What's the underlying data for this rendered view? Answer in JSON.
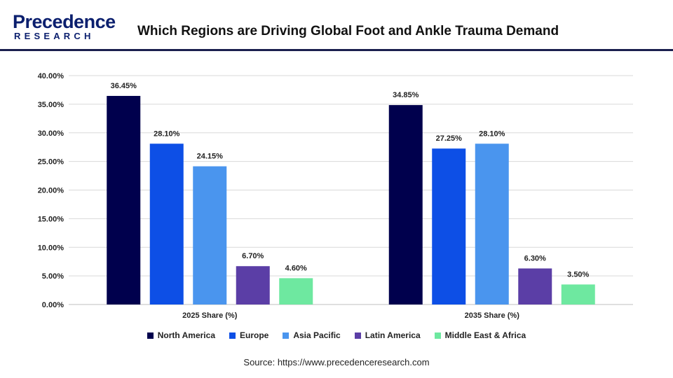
{
  "header": {
    "logo_word": "Precedence",
    "logo_sub": "RESEARCH",
    "title": "Which Regions are Driving Global Foot and Ankle Trauma Demand"
  },
  "colors": {
    "North America": "#00004d",
    "Europe": "#0d4fe6",
    "Asia Pacific": "#4a95ee",
    "Latin America": "#5b3ea6",
    "Middle East & Africa": "#6ee8a0"
  },
  "chart_data": {
    "type": "bar",
    "categories": [
      "2025 Share (%)",
      "2035 Share (%)"
    ],
    "series": [
      {
        "name": "North America",
        "values": [
          36.45,
          34.85
        ]
      },
      {
        "name": "Europe",
        "values": [
          28.1,
          27.25
        ]
      },
      {
        "name": "Asia Pacific",
        "values": [
          24.15,
          28.1
        ]
      },
      {
        "name": "Latin America",
        "values": [
          6.7,
          6.3
        ]
      },
      {
        "name": "Middle East & Africa",
        "values": [
          4.6,
          3.5
        ]
      }
    ],
    "data_labels": [
      [
        "36.45%",
        "34.85%"
      ],
      [
        "28.10%",
        "27.25%"
      ],
      [
        "24.15%",
        "28.10%"
      ],
      [
        "6.70%",
        "6.30%"
      ],
      [
        "4.60%",
        "3.50%"
      ]
    ],
    "yticks": [
      "0.00%",
      "5.00%",
      "10.00%",
      "15.00%",
      "20.00%",
      "25.00%",
      "30.00%",
      "35.00%",
      "40.00%"
    ],
    "ylim": [
      0,
      40
    ],
    "grid": true,
    "legend_position": "bottom"
  },
  "source": "Source: https://www.precedenceresearch.com"
}
